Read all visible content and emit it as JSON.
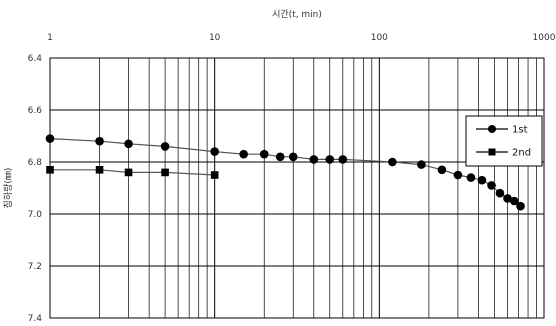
{
  "chart_data": {
    "type": "scatter",
    "title": "",
    "xlabel": "시간(t, min)",
    "ylabel": "침하량(㎜)",
    "x_scale": "log",
    "xlim": [
      1,
      1000
    ],
    "ylim": [
      6.4,
      7.4
    ],
    "y_inverted": true,
    "x_ticks": [
      "1",
      "10",
      "100",
      "1000"
    ],
    "y_ticks": [
      "6.4",
      "6.6",
      "6.8",
      "7.0",
      "7.2",
      "7.4"
    ],
    "grid": true,
    "legend_position": "right",
    "series": [
      {
        "name": "1st",
        "marker": "circle",
        "color": "#000000",
        "x": [
          1,
          2,
          3,
          5,
          10,
          15,
          20,
          25,
          30,
          40,
          50,
          60,
          120,
          180,
          240,
          300,
          360,
          420,
          480,
          540,
          600,
          660,
          720
        ],
        "y": [
          6.71,
          6.72,
          6.73,
          6.74,
          6.76,
          6.77,
          6.77,
          6.78,
          6.78,
          6.79,
          6.79,
          6.79,
          6.8,
          6.81,
          6.83,
          6.85,
          6.86,
          6.87,
          6.89,
          6.92,
          6.94,
          6.95,
          6.97
        ]
      },
      {
        "name": "2nd",
        "marker": "square",
        "color": "#000000",
        "x": [
          1,
          2,
          3,
          5,
          10
        ],
        "y": [
          6.83,
          6.83,
          6.84,
          6.84,
          6.85
        ]
      }
    ]
  }
}
